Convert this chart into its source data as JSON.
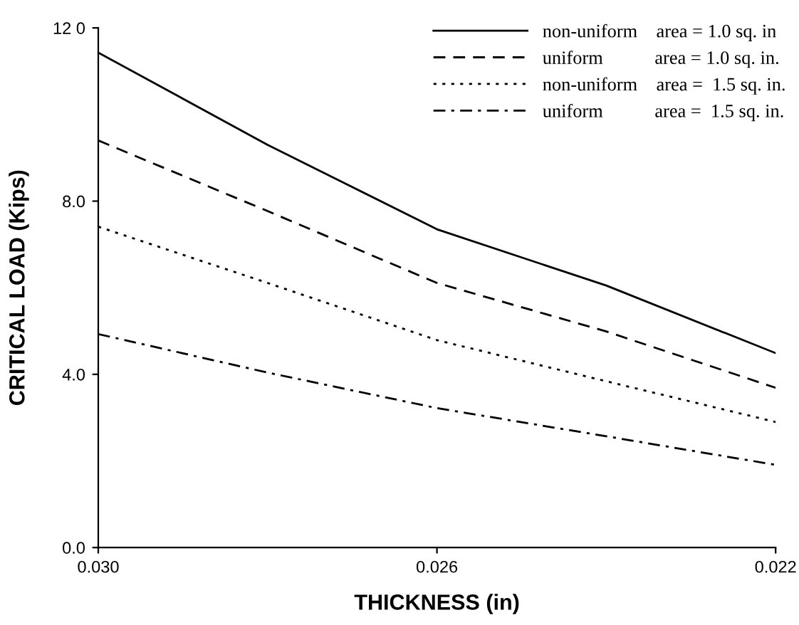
{
  "chart_data": {
    "type": "line",
    "xlabel": "THICKNESS (in)",
    "ylabel": "CRITICAL LOAD (Kips)",
    "x": [
      0.03,
      0.028,
      0.026,
      0.024,
      0.022
    ],
    "xlim": [
      0.03,
      0.022
    ],
    "xticks": [
      {
        "value": 0.03,
        "label": "0.030"
      },
      {
        "value": 0.026,
        "label": "0.026"
      },
      {
        "value": 0.022,
        "label": "0.022"
      }
    ],
    "ylim": [
      0,
      12
    ],
    "yticks": [
      {
        "value": 0,
        "label": "0.0"
      },
      {
        "value": 4,
        "label": "4.0"
      },
      {
        "value": 8,
        "label": "8.0"
      },
      {
        "value": 12,
        "label": "12 0"
      }
    ],
    "grid": false,
    "legend": "top right",
    "marker": "none",
    "series": [
      {
        "name": "non-uniform    area = 1.0 sq. in",
        "color": "#000000",
        "line_style": "solid",
        "values": [
          11.43,
          9.3,
          7.35,
          6.05,
          4.49
        ]
      },
      {
        "name": "uniform           area = 1.0 sq. in.",
        "color": "#000000",
        "line_style": "dashed",
        "values": [
          9.4,
          7.77,
          6.11,
          4.99,
          3.69
        ]
      },
      {
        "name": "non-uniform    area =  1.5 sq. in.",
        "color": "#000000",
        "line_style": "dotted",
        "values": [
          7.41,
          6.11,
          4.79,
          3.84,
          2.9
        ]
      },
      {
        "name": "uniform           area =  1.5 sq. in.",
        "color": "#000000",
        "line_style": "dashdot",
        "values": [
          4.93,
          4.04,
          3.22,
          2.57,
          1.91
        ]
      }
    ]
  }
}
